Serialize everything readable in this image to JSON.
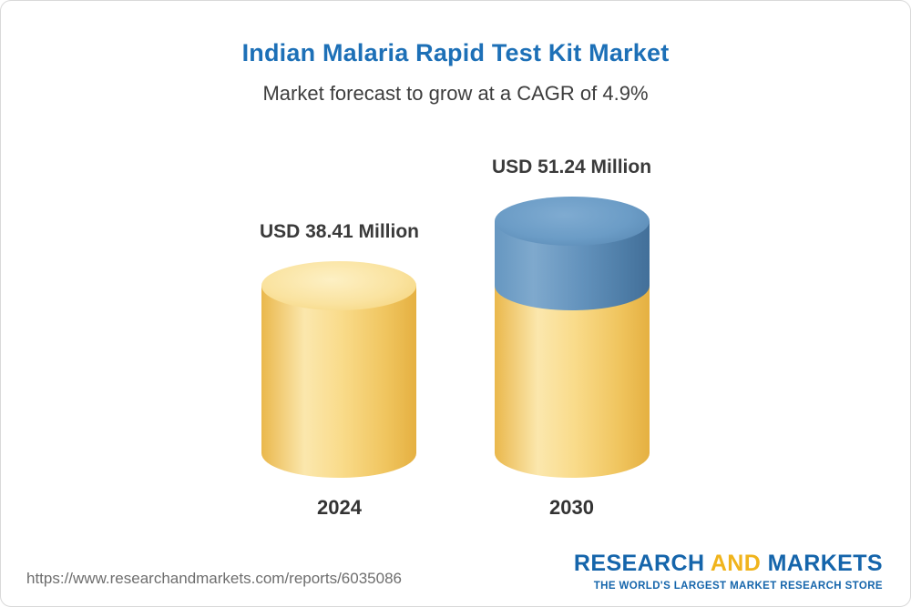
{
  "header": {
    "title": "Indian Malaria Rapid Test Kit Market",
    "subtitle": "Market forecast to grow at a CAGR of 4.9%"
  },
  "chart_data": {
    "type": "bar",
    "variant": "3d-cylinder",
    "categories": [
      "2024",
      "2030"
    ],
    "values": [
      38.41,
      51.24
    ],
    "value_labels": [
      "USD 38.41 Million",
      "USD 51.24 Million"
    ],
    "unit": "USD Million",
    "cagr_percent": 4.9,
    "title": "Indian Malaria Rapid Test Kit Market",
    "subtitle": "Market forecast to grow at a CAGR of 4.9%",
    "ylim": [
      0,
      55
    ],
    "grid": false,
    "legend": false,
    "colors": {
      "base_segment": "#F5CE68",
      "growth_segment": "#5E8FBC"
    },
    "notes": "2030 cylinder shows the 2024 base level in yellow with incremental growth segment in blue on top"
  },
  "footer": {
    "url": "https://www.researchandmarkets.com/reports/6035086",
    "logo": {
      "research": "RESEARCH",
      "and": "AND",
      "markets": "MARKETS",
      "tagline": "THE WORLD'S LARGEST MARKET RESEARCH STORE"
    }
  }
}
